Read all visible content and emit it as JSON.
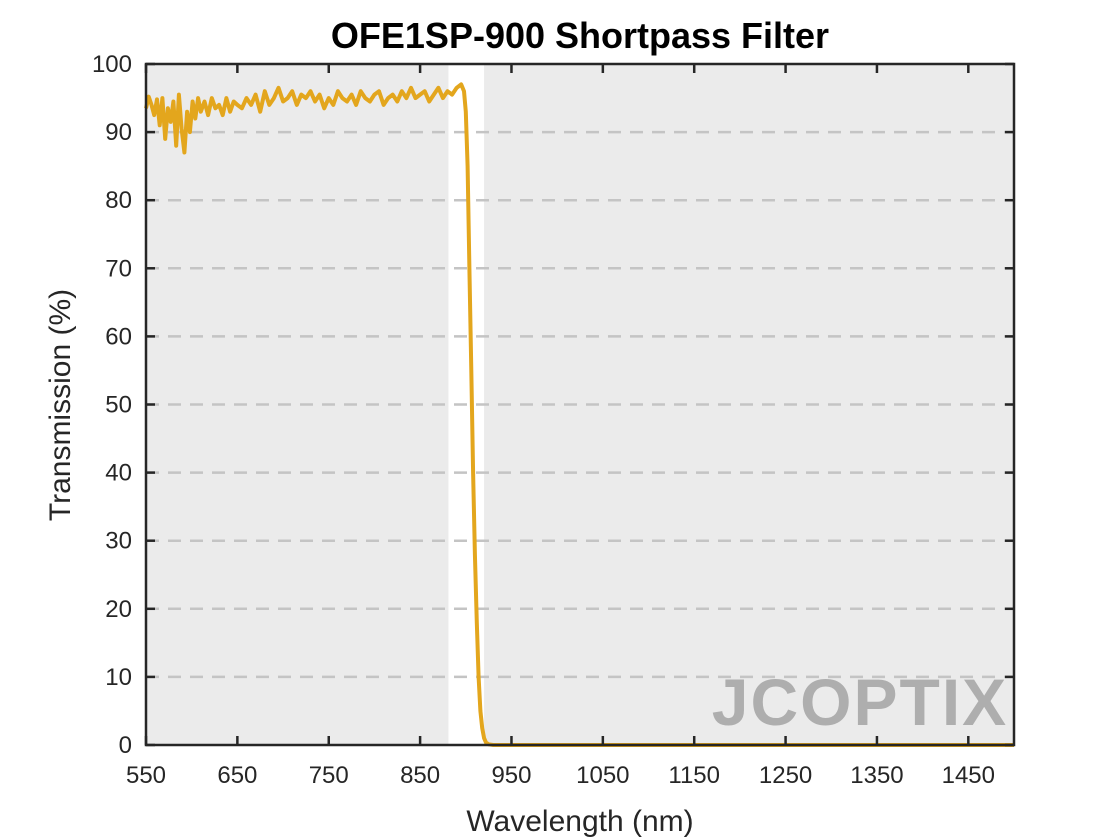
{
  "chart_data": {
    "type": "line",
    "title": "OFE1SP-900 Shortpass Filter",
    "xlabel": "Wavelength (nm)",
    "ylabel": "Transmission (%)",
    "xlim": [
      550,
      1500
    ],
    "ylim": [
      0,
      100
    ],
    "xticks": [
      550,
      650,
      750,
      850,
      950,
      1050,
      1150,
      1250,
      1350,
      1450
    ],
    "yticks": [
      0,
      10,
      20,
      30,
      40,
      50,
      60,
      70,
      80,
      90,
      100
    ],
    "grid": "horizontal dashed",
    "background": "#ebebeb",
    "highlight_band": [
      881,
      920
    ],
    "series": [
      {
        "color": "#e3a61d",
        "x": [
          550,
          553,
          556,
          559,
          562,
          565,
          568,
          571,
          574,
          577,
          580,
          583,
          586,
          589,
          592,
          595,
          598,
          601,
          604,
          607,
          610,
          614,
          618,
          622,
          626,
          630,
          634,
          638,
          642,
          646,
          650,
          655,
          660,
          665,
          670,
          675,
          680,
          685,
          690,
          695,
          700,
          705,
          710,
          715,
          720,
          725,
          730,
          735,
          740,
          745,
          750,
          755,
          760,
          765,
          770,
          775,
          780,
          785,
          790,
          795,
          800,
          805,
          810,
          815,
          820,
          825,
          830,
          835,
          840,
          845,
          850,
          855,
          860,
          865,
          870,
          875,
          880,
          885,
          890,
          895,
          898,
          900,
          902,
          904,
          906,
          908,
          910,
          912,
          914,
          916,
          918,
          920,
          922,
          925,
          930,
          940,
          1000,
          1100,
          1200,
          1300,
          1400,
          1500
        ],
        "y": [
          93.5,
          95.2,
          94.0,
          92.5,
          94.8,
          91.0,
          95.0,
          89.0,
          93.5,
          91.5,
          94.5,
          88.0,
          95.5,
          90.5,
          87.0,
          93.0,
          90.0,
          94.5,
          92.0,
          95.0,
          93.0,
          94.5,
          92.5,
          95.0,
          93.5,
          94.0,
          92.5,
          95.0,
          93.0,
          94.5,
          94.0,
          93.5,
          95.0,
          94.0,
          95.5,
          93.0,
          96.0,
          94.0,
          95.0,
          96.5,
          94.5,
          95.0,
          96.0,
          94.0,
          95.5,
          95.0,
          96.0,
          94.5,
          95.5,
          93.5,
          95.0,
          94.0,
          96.0,
          95.0,
          94.5,
          95.5,
          94.0,
          96.0,
          95.0,
          94.5,
          95.5,
          96.0,
          94.0,
          95.0,
          95.5,
          94.5,
          96.0,
          95.0,
          96.5,
          95.0,
          95.5,
          96.0,
          94.5,
          95.5,
          96.5,
          95.0,
          96.0,
          95.5,
          96.5,
          97.0,
          96.0,
          93.0,
          85.0,
          70.0,
          55.0,
          40.0,
          28.0,
          18.0,
          10.0,
          5.0,
          2.5,
          1.0,
          0.4,
          0.1,
          0.0,
          0.0,
          0.0,
          0.0,
          0.0,
          0.0,
          0.0,
          0.0
        ]
      }
    ]
  },
  "watermark": {
    "text": "JCOPTIX"
  }
}
